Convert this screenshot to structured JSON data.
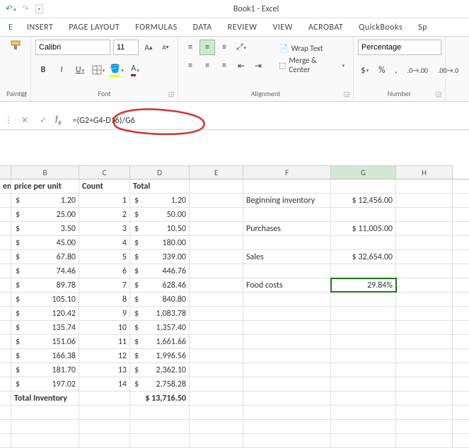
{
  "title": "Book1 - Excel",
  "tabs": [
    "INSERT",
    "PAGE LAYOUT",
    "FORMULAS",
    "DATA",
    "REVIEW",
    "VIEW",
    "ACROBAT",
    "QuickBooks",
    "Sp"
  ],
  "ribbon": {
    "painter": "Painter",
    "font": {
      "name": "Calibri",
      "size": "11",
      "group_label": "Font",
      "fill_color": "#ffff00",
      "font_color": "#c00000"
    },
    "alignment": {
      "wrap": "Wrap Text",
      "merge": "Merge & Center",
      "group_label": "Alignment"
    },
    "number": {
      "format": "Percentage",
      "group_label": "Number"
    }
  },
  "formula_bar": {
    "formula": "=(G2+G4-D16)/G6"
  },
  "columns": [
    "B",
    "C",
    "D",
    "E",
    "F",
    "G",
    "H"
  ],
  "selected_col": "G",
  "headers": {
    "A": "em",
    "B": "price per unit",
    "C": "Count",
    "D": "Total"
  },
  "data_rows": [
    {
      "price": "1.20",
      "count": "1",
      "total": "1.20"
    },
    {
      "price": "25.00",
      "count": "2",
      "total": "50.00"
    },
    {
      "price": "3.50",
      "count": "3",
      "total": "10.50"
    },
    {
      "price": "45.00",
      "count": "4",
      "total": "180.00"
    },
    {
      "price": "67.80",
      "count": "5",
      "total": "339.00"
    },
    {
      "price": "74.46",
      "count": "6",
      "total": "446.76"
    },
    {
      "price": "89.78",
      "count": "7",
      "total": "628.46"
    },
    {
      "price": "105.10",
      "count": "8",
      "total": "840.80"
    },
    {
      "price": "120.42",
      "count": "9",
      "total": "1,083.78"
    },
    {
      "price": "135.74",
      "count": "10",
      "total": "1,357.40"
    },
    {
      "price": "151.06",
      "count": "11",
      "total": "1,661.66"
    },
    {
      "price": "166.38",
      "count": "12",
      "total": "1,996.56"
    },
    {
      "price": "181.70",
      "count": "13",
      "total": "2,362.10"
    },
    {
      "price": "197.02",
      "count": "14",
      "total": "2,758.28"
    }
  ],
  "total_row": {
    "label": "Total Inventory",
    "value": "$ 13,716.50"
  },
  "side": [
    {
      "label": "Beginning inventory",
      "value": "$ 12,456.00",
      "row": 0
    },
    {
      "label": "Purchases",
      "value": "$ 11,005.00",
      "row": 2
    },
    {
      "label": "Sales",
      "value": "$ 32,654.00",
      "row": 4
    },
    {
      "label": "Food costs",
      "value": "29.84%",
      "row": 6,
      "selected": true
    }
  ],
  "colors": {
    "grid_border": "#e0e0e0",
    "header_bg": "#f3f3f3",
    "selected_col_bg": "#d4e6d4",
    "selection_border": "#1a7a1a",
    "annotation": "#d43131"
  }
}
